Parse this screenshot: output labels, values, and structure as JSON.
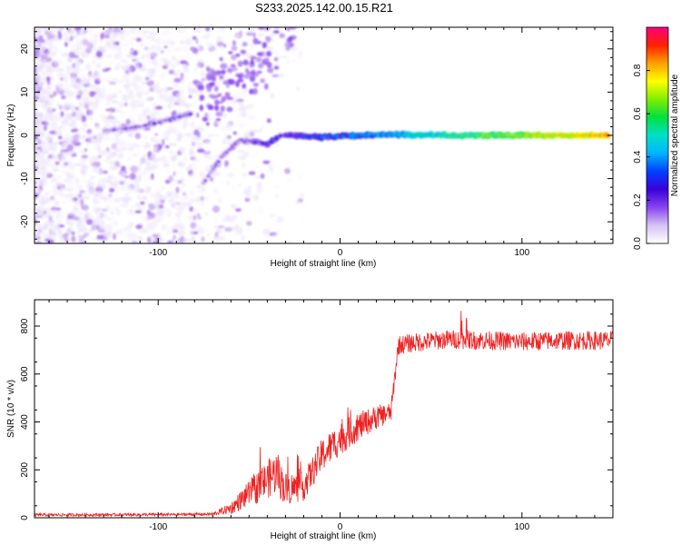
{
  "chart_data": [
    {
      "type": "heatmap",
      "title": "S233.2025.142.00.15.R21",
      "xlabel": "Height of straight line (km)",
      "ylabel": "Frequency (Hz)",
      "xlim": [
        -168,
        150
      ],
      "ylim": [
        -25,
        25
      ],
      "xticks": [
        -100,
        0,
        100
      ],
      "yticks": [
        -20,
        -10,
        0,
        10,
        20
      ],
      "colorbar": {
        "label": "Normalized spectral amplitude",
        "range": [
          0,
          1
        ],
        "ticks": [
          "0.0",
          "0.2",
          "0.4",
          "0.6",
          "0.8"
        ],
        "colormap": [
          "#ffffff",
          "#d6c2f5",
          "#8844ee",
          "#3a00d8",
          "#0040ff",
          "#00b4ff",
          "#00e0c8",
          "#00e040",
          "#80ee00",
          "#ffff00",
          "#ffa000",
          "#ff2000",
          "#ff0080"
        ]
      },
      "ridges": [
        {
          "name": "central carrier",
          "points": [
            [
              -30,
              0.0
            ],
            [
              -10,
              -0.4
            ],
            [
              20,
              0.2
            ],
            [
              60,
              0.0
            ],
            [
              148,
              0.0
            ]
          ],
          "amplitude_start": 0.3,
          "amplitude_end": 0.9
        },
        {
          "name": "upper branch",
          "points": [
            [
              -130,
              1.0
            ],
            [
              -110,
              2.0
            ],
            [
              -95,
              3.5
            ],
            [
              -82,
              5.0
            ]
          ],
          "amplitude_start": 0.15,
          "amplitude_end": 0.25
        },
        {
          "name": "lower branch",
          "points": [
            [
              -75,
              -11.0
            ],
            [
              -65,
              -5.0
            ],
            [
              -55,
              -1.0
            ],
            [
              -40,
              -2.0
            ],
            [
              -32,
              0.0
            ]
          ],
          "amplitude_start": 0.15,
          "amplitude_end": 0.3
        }
      ]
    },
    {
      "type": "line",
      "xlabel": "Height of straight line (km)",
      "ylabel": "SNR (10 * v/v)",
      "xlim": [
        -168,
        150
      ],
      "ylim": [
        0,
        910
      ],
      "xticks": [
        -100,
        0,
        100
      ],
      "yticks": [
        0,
        200,
        400,
        600,
        800
      ],
      "color": "#ee2222",
      "envelope": {
        "x": [
          -168,
          -150,
          -100,
          -70,
          -60,
          -45,
          -35,
          -30,
          -20,
          -10,
          0,
          10,
          20,
          28,
          32,
          40,
          60,
          80,
          100,
          120,
          150
        ],
        "y": [
          12,
          12,
          13,
          15,
          40,
          130,
          190,
          120,
          130,
          260,
          330,
          380,
          420,
          440,
          720,
          730,
          745,
          740,
          735,
          740,
          740
        ],
        "noise_amplitude": [
          6,
          6,
          6,
          6,
          25,
          70,
          90,
          70,
          60,
          70,
          70,
          60,
          50,
          40,
          40,
          40,
          40,
          40,
          40,
          40,
          40
        ]
      }
    }
  ]
}
